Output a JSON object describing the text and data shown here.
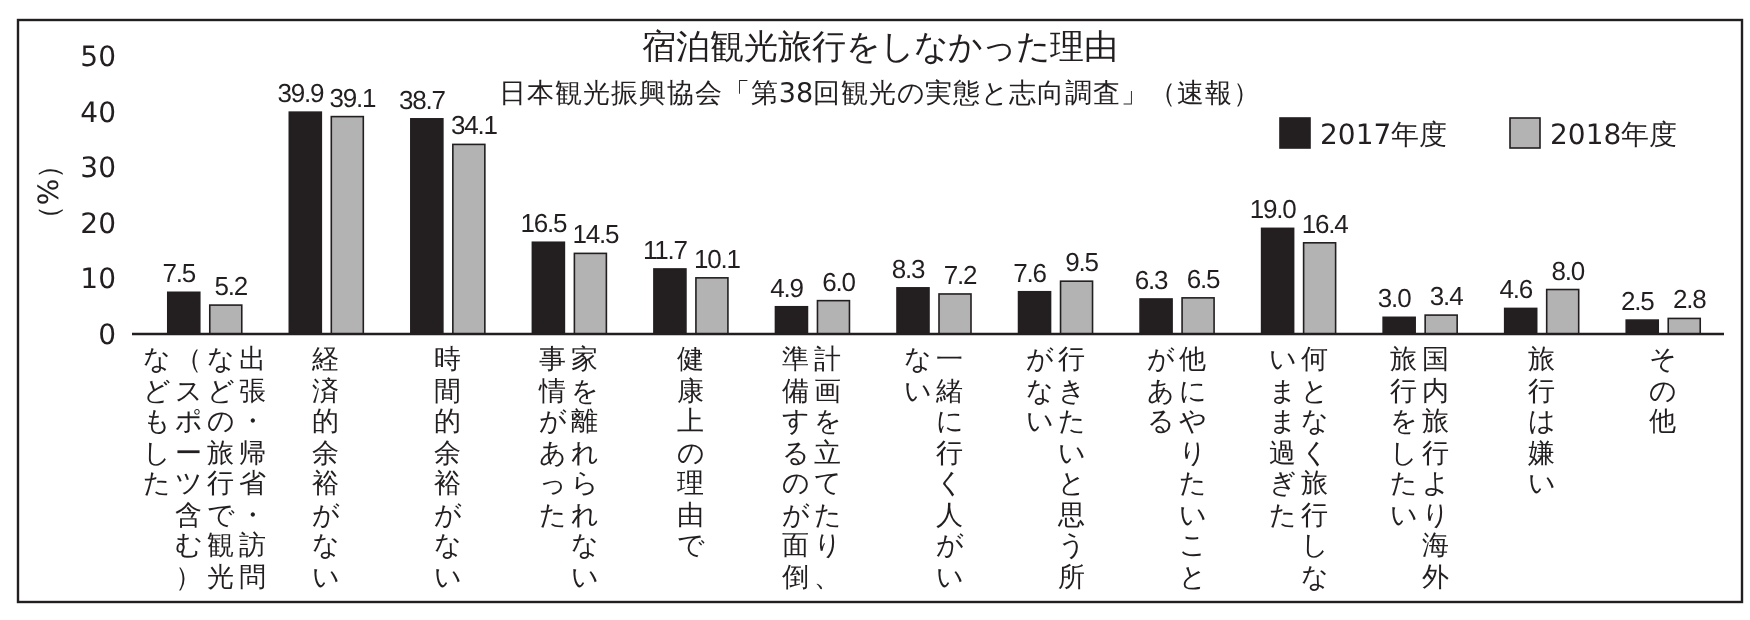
{
  "chart_data": {
    "type": "bar",
    "title": "宿泊観光旅行をしなかった理由",
    "subtitle": "日本観光振興協会「第38回観光の実態と志向調査」（速報）",
    "ylabel": "（%）",
    "categories": [
      "出張・帰省・訪問などの旅行で観光（スポーツ含む）などもした",
      "経済的余裕がない",
      "時間的余裕がない",
      "家を離れられない事情があった",
      "健康上の理由で",
      "計画を立てたり、準備するのが面倒",
      "一緒に行く人がいない",
      "行きたいと思う所がない",
      "他にやりたいことがある",
      "何となく旅行しないまま過ぎた",
      "国内旅行より海外旅行をしたい",
      "旅行は嫌い",
      "その他"
    ],
    "series": [
      {
        "name": "2017年度",
        "color": "#231f20",
        "values": [
          7.5,
          39.9,
          38.7,
          16.5,
          11.7,
          4.9,
          8.3,
          7.6,
          6.3,
          19.0,
          3.0,
          4.6,
          2.5
        ],
        "value_labels": [
          "7.5",
          "39.9",
          "38.7",
          "16.5",
          "11.7",
          "4.9",
          "8.3",
          "7.6",
          "6.3",
          "19.0",
          "3.0",
          "4.6",
          "2.5"
        ]
      },
      {
        "name": "2018年度",
        "color": "#b3b3b3",
        "values": [
          5.2,
          39.1,
          34.1,
          14.5,
          10.1,
          6.0,
          7.2,
          9.5,
          6.5,
          16.4,
          3.4,
          8.0,
          2.8
        ],
        "value_labels": [
          "5.2",
          "39.1",
          "34.1",
          "14.5",
          "10.1",
          "6.0",
          "7.2",
          "9.5",
          "6.5",
          "16.4",
          "3.4",
          "8.0",
          "2.8"
        ]
      }
    ],
    "ylim": [
      0,
      50
    ],
    "yticks": [
      0,
      10,
      20,
      30,
      40,
      50
    ],
    "legend": "top right",
    "grid": false
  }
}
